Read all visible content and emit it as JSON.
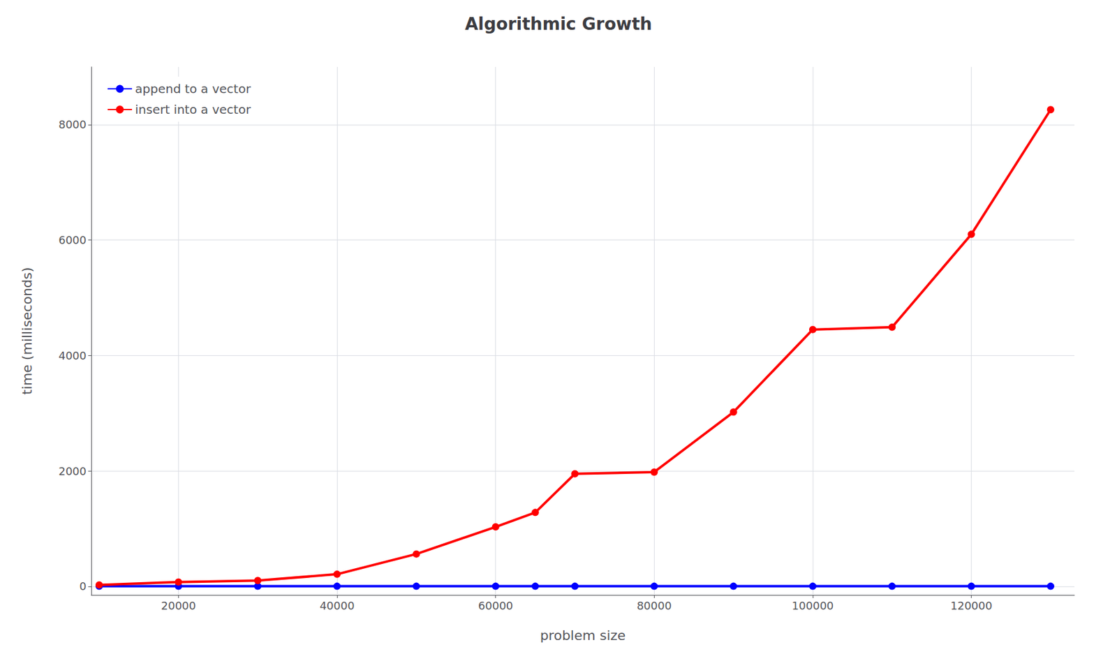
{
  "chart_data": {
    "type": "line",
    "title": "Algorithmic Growth",
    "xlabel": "problem size",
    "ylabel": "time (milliseconds)",
    "x": [
      10000,
      20000,
      30000,
      40000,
      50000,
      60000,
      65000,
      70000,
      80000,
      90000,
      100000,
      110000,
      120000,
      130000
    ],
    "series": [
      {
        "name": "append to a vector",
        "color": "#0000ff",
        "marker": "circle",
        "values": [
          2,
          2,
          2,
          2,
          2,
          2,
          2,
          2,
          2,
          2,
          2,
          2,
          2,
          2
        ]
      },
      {
        "name": "insert into a vector",
        "color": "#ff0000",
        "marker": "circle",
        "values": [
          25,
          75,
          100,
          210,
          560,
          1030,
          1280,
          1950,
          1980,
          3020,
          4450,
          4490,
          6100,
          8260
        ]
      }
    ],
    "xlim": [
      9000,
      133000
    ],
    "ylim": [
      -150,
      9000
    ],
    "xticks": [
      20000,
      40000,
      60000,
      80000,
      100000,
      120000
    ],
    "yticks": [
      0,
      2000,
      4000,
      6000,
      8000
    ],
    "grid": true,
    "legend": "upper left"
  }
}
